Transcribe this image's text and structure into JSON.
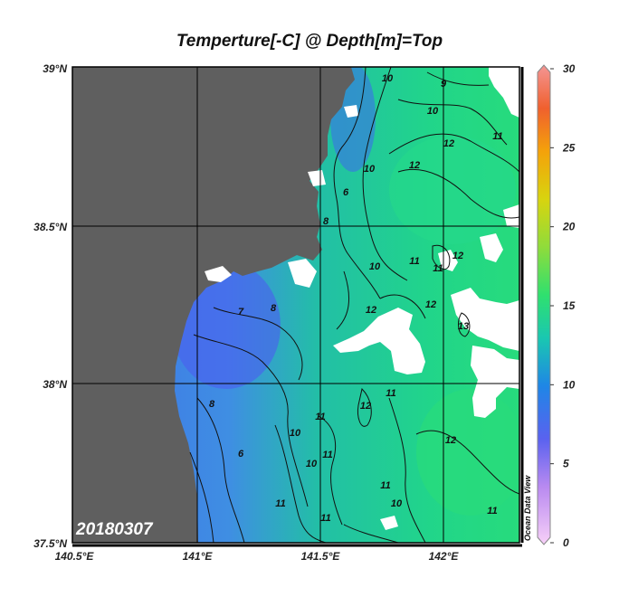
{
  "title": "Temperture[-C] @ Depth[m]=Top",
  "date_label": "20180307",
  "watermark": "Ocean Data View",
  "map": {
    "lat_labels": [
      "39°N",
      "38.5°N",
      "38°N",
      "37.5°N"
    ],
    "lon_labels": [
      "140.5°E",
      "141°E",
      "141.5°E",
      "142°E"
    ],
    "land_color": "#5f5f5f",
    "no_data_color": "#ffffff",
    "contour_labels": [
      "10",
      "10",
      "12",
      "11",
      "12",
      "10",
      "6",
      "8",
      "9",
      "11",
      "10",
      "11",
      "12",
      "12",
      "12",
      "7",
      "8",
      "8",
      "6",
      "10",
      "11",
      "10",
      "11",
      "11",
      "12",
      "11",
      "11",
      "11",
      "13",
      "12",
      "10",
      "11"
    ]
  },
  "colorbar": {
    "ticks": [
      "30",
      "25",
      "20",
      "15",
      "10",
      "5",
      "0"
    ],
    "colors": [
      "#f49694",
      "#f0602e",
      "#f4a20a",
      "#d8d40f",
      "#8fdc3b",
      "#2fe06f",
      "#1ac7b1",
      "#1f86e6",
      "#4a62ee",
      "#a27ae8",
      "#f4c6f7"
    ]
  }
}
